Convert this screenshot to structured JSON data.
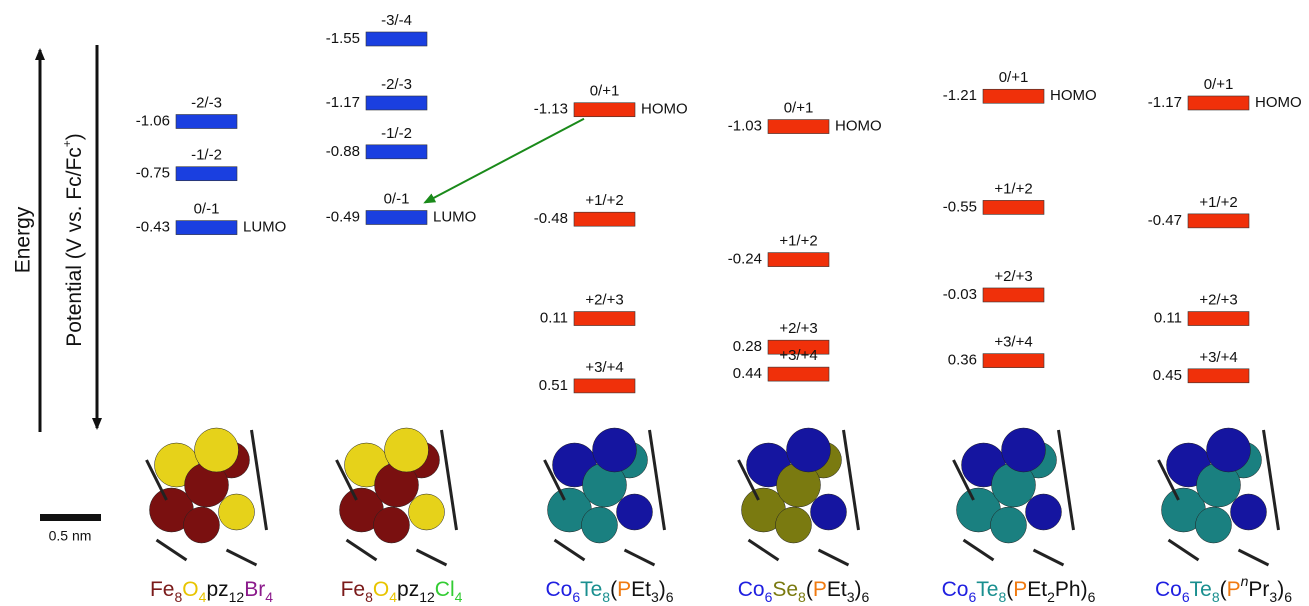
{
  "axis": {
    "energy_label": "Energy",
    "potential_label": [
      {
        "t": "Potential (V vs. Fc/Fc"
      },
      {
        "t": "+",
        "sup": true
      },
      {
        "t": ")"
      }
    ],
    "scale_bar": "0.5 nm"
  },
  "columns": [
    {
      "level_color": "#1a3fe0",
      "levels": [
        {
          "potential": -1.06,
          "couple": "-2/-3"
        },
        {
          "potential": -0.75,
          "couple": "-1/-2"
        },
        {
          "potential": -0.43,
          "couple": "0/-1",
          "orbital": "LUMO"
        }
      ],
      "formula": [
        {
          "t": "Fe",
          "c": "#7a1a1a"
        },
        {
          "t": "8",
          "c": "#7a1a1a",
          "sub": true
        },
        {
          "t": "O",
          "c": "#e8c400"
        },
        {
          "t": "4",
          "c": "#e8c400",
          "sub": true
        },
        {
          "t": "pz",
          "c": "#111111"
        },
        {
          "t": "12",
          "c": "#111111",
          "sub": true
        },
        {
          "t": "Br",
          "c": "#8b1a8b"
        },
        {
          "t": "4",
          "c": "#8b1a8b",
          "sub": true
        }
      ]
    },
    {
      "level_color": "#1a3fe0",
      "levels": [
        {
          "potential": -1.55,
          "couple": "-3/-4"
        },
        {
          "potential": -1.17,
          "couple": "-2/-3"
        },
        {
          "potential": -0.88,
          "couple": "-1/-2"
        },
        {
          "potential": -0.49,
          "couple": "0/-1",
          "orbital": "LUMO"
        }
      ],
      "formula": [
        {
          "t": "Fe",
          "c": "#7a1a1a"
        },
        {
          "t": "8",
          "c": "#7a1a1a",
          "sub": true
        },
        {
          "t": "O",
          "c": "#e8c400"
        },
        {
          "t": "4",
          "c": "#e8c400",
          "sub": true
        },
        {
          "t": "pz",
          "c": "#111111"
        },
        {
          "t": "12",
          "c": "#111111",
          "sub": true
        },
        {
          "t": "Cl",
          "c": "#33cc33"
        },
        {
          "t": "4",
          "c": "#33cc33",
          "sub": true
        }
      ]
    },
    {
      "level_color": "#f0300a",
      "levels": [
        {
          "potential": -1.13,
          "couple": "0/+1",
          "orbital": "HOMO"
        },
        {
          "potential": -0.48,
          "couple": "+1/+2"
        },
        {
          "potential": 0.11,
          "couple": "+2/+3"
        },
        {
          "potential": 0.51,
          "couple": "+3/+4"
        }
      ],
      "formula": [
        {
          "t": "Co",
          "c": "#1f1fe0"
        },
        {
          "t": "6",
          "c": "#1f1fe0",
          "sub": true
        },
        {
          "t": "Te",
          "c": "#1a8f8f"
        },
        {
          "t": "8",
          "c": "#1a8f8f",
          "sub": true
        },
        {
          "t": "(",
          "c": "#111111"
        },
        {
          "t": "P",
          "c": "#f07a10"
        },
        {
          "t": "Et",
          "c": "#111111"
        },
        {
          "t": "3",
          "c": "#111111",
          "sub": true
        },
        {
          "t": ")",
          "c": "#111111"
        },
        {
          "t": "6",
          "c": "#111111",
          "sub": true
        }
      ]
    },
    {
      "level_color": "#f0300a",
      "levels": [
        {
          "potential": -1.03,
          "couple": "0/+1",
          "orbital": "HOMO"
        },
        {
          "potential": -0.24,
          "couple": "+1/+2"
        },
        {
          "potential": 0.28,
          "couple": "+2/+3"
        },
        {
          "potential": 0.44,
          "couple": "+3/+4"
        }
      ],
      "formula": [
        {
          "t": "Co",
          "c": "#1f1fe0"
        },
        {
          "t": "6",
          "c": "#1f1fe0",
          "sub": true
        },
        {
          "t": "Se",
          "c": "#7a7a10"
        },
        {
          "t": "8",
          "c": "#7a7a10",
          "sub": true
        },
        {
          "t": "(",
          "c": "#111111"
        },
        {
          "t": "P",
          "c": "#f07a10"
        },
        {
          "t": "Et",
          "c": "#111111"
        },
        {
          "t": "3",
          "c": "#111111",
          "sub": true
        },
        {
          "t": ")",
          "c": "#111111"
        },
        {
          "t": "6",
          "c": "#111111",
          "sub": true
        }
      ]
    },
    {
      "level_color": "#f0300a",
      "levels": [
        {
          "potential": -1.21,
          "couple": "0/+1",
          "orbital": "HOMO"
        },
        {
          "potential": -0.55,
          "couple": "+1/+2"
        },
        {
          "potential": -0.03,
          "couple": "+2/+3"
        },
        {
          "potential": 0.36,
          "couple": "+3/+4"
        }
      ],
      "formula": [
        {
          "t": "Co",
          "c": "#1f1fe0"
        },
        {
          "t": "6",
          "c": "#1f1fe0",
          "sub": true
        },
        {
          "t": "Te",
          "c": "#1a8f8f"
        },
        {
          "t": "8",
          "c": "#1a8f8f",
          "sub": true
        },
        {
          "t": "(",
          "c": "#111111"
        },
        {
          "t": "P",
          "c": "#f07a10"
        },
        {
          "t": "Et",
          "c": "#111111"
        },
        {
          "t": "2",
          "c": "#111111",
          "sub": true
        },
        {
          "t": "Ph)",
          "c": "#111111"
        },
        {
          "t": "6",
          "c": "#111111",
          "sub": true
        }
      ]
    },
    {
      "level_color": "#f0300a",
      "levels": [
        {
          "potential": -1.17,
          "couple": "0/+1",
          "orbital": "HOMO"
        },
        {
          "potential": -0.47,
          "couple": "+1/+2"
        },
        {
          "potential": 0.11,
          "couple": "+2/+3"
        },
        {
          "potential": 0.45,
          "couple": "+3/+4"
        }
      ],
      "formula": [
        {
          "t": "Co",
          "c": "#1f1fe0"
        },
        {
          "t": "6",
          "c": "#1f1fe0",
          "sub": true
        },
        {
          "t": "Te",
          "c": "#1a8f8f"
        },
        {
          "t": "8",
          "c": "#1a8f8f",
          "sub": true
        },
        {
          "t": "(",
          "c": "#111111"
        },
        {
          "t": "P",
          "c": "#f07a10"
        },
        {
          "t": "n",
          "c": "#111111",
          "sup": true,
          "italic": true
        },
        {
          "t": "Pr",
          "c": "#111111"
        },
        {
          "t": "3",
          "c": "#111111",
          "sub": true
        },
        {
          "t": ")",
          "c": "#111111"
        },
        {
          "t": "6",
          "c": "#111111",
          "sub": true
        }
      ]
    }
  ]
}
